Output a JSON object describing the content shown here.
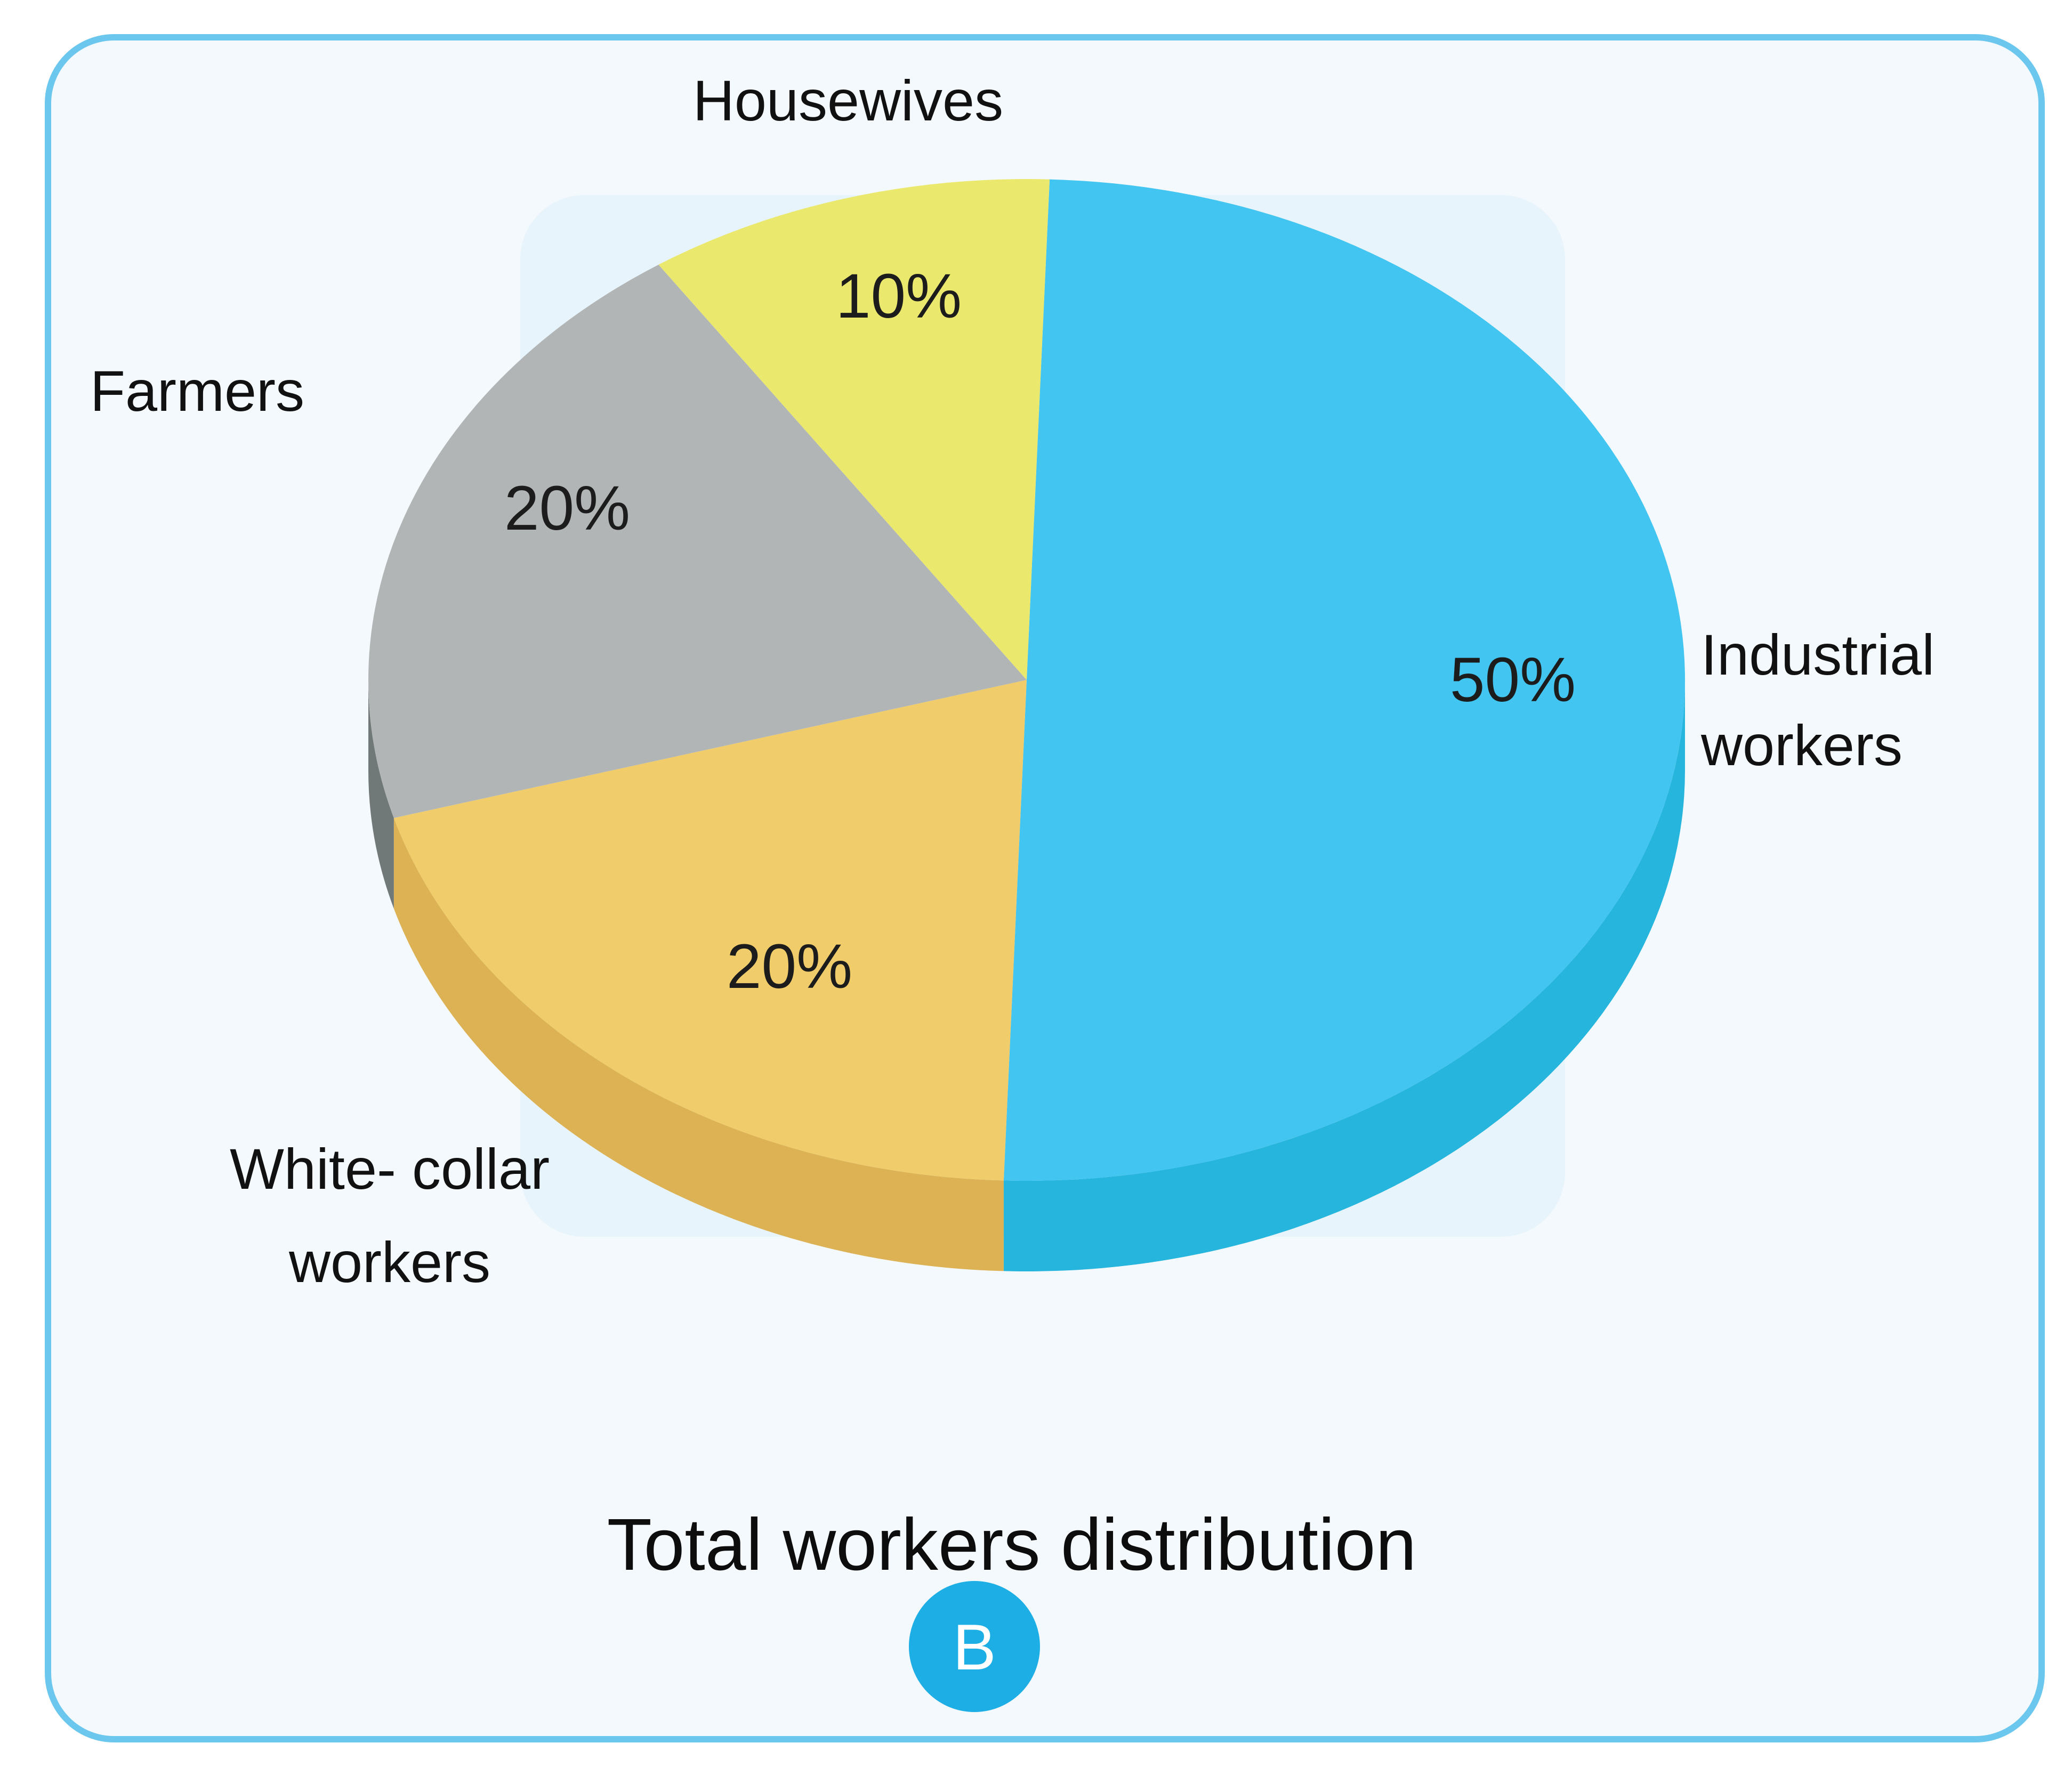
{
  "chart_data": {
    "type": "pie",
    "title": "Total workers distribution",
    "badge": "B",
    "slices": [
      {
        "name": "Industrial workers",
        "value": 50,
        "label": "50%",
        "color": "#42c5f1",
        "side_color": "#26b5dc"
      },
      {
        "name": "White- collar workers",
        "value": 20,
        "label": "20%",
        "color": "#f0cd6a",
        "side_color": "#dcb254"
      },
      {
        "name": "Farmers",
        "value": 20,
        "label": "20%",
        "color": "#b2b5b6",
        "side_color": "#707878"
      },
      {
        "name": "Housewives",
        "value": 10,
        "label": "10%",
        "color": "#ebe86e",
        "side_color": "#cfcc55"
      }
    ],
    "slice_name_lines": {
      "industrial": [
        "Industrial",
        "workers"
      ],
      "white_collar": [
        "White- collar",
        "workers"
      ],
      "farmers": [
        "Farmers"
      ],
      "housewives": [
        "Housewives"
      ]
    },
    "style": "3d-tilted",
    "legend": "none",
    "colors": {
      "border": "#6cc7ee",
      "card_background": "#f4f9fd",
      "badge": "#1caee5"
    }
  }
}
